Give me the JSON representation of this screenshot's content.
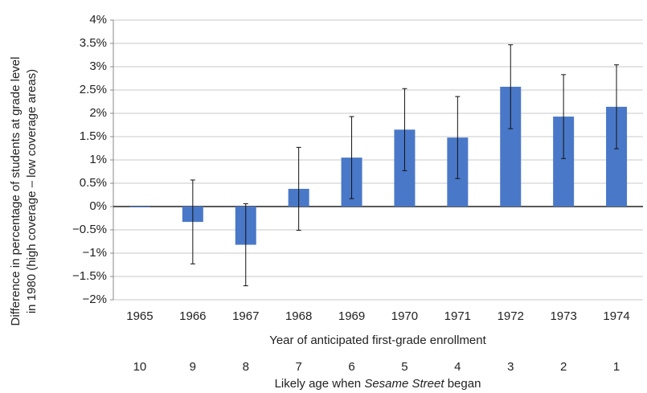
{
  "chart_data": {
    "type": "bar",
    "y_label": [
      "Difference in percentage of students at grade level",
      "in 1980 (high coverage – low coverage areas)"
    ],
    "x_label": "Year of anticipated first-grade enrollment",
    "x2_label": [
      "Likely age when ",
      "Sesame Street",
      " began"
    ],
    "categories": [
      "1965",
      "1966",
      "1967",
      "1968",
      "1969",
      "1970",
      "1971",
      "1972",
      "1973",
      "1974"
    ],
    "categories2": [
      "10",
      "9",
      "8",
      "7",
      "6",
      "5",
      "4",
      "3",
      "2",
      "1"
    ],
    "values": [
      0,
      -0.33,
      -0.82,
      0.38,
      1.05,
      1.65,
      1.48,
      2.57,
      1.93,
      2.14
    ],
    "errors": [
      0,
      0.9,
      0.88,
      0.89,
      0.88,
      0.88,
      0.88,
      0.9,
      0.9,
      0.9
    ],
    "color": "#4a78c8",
    "ylim": [
      -2,
      4
    ],
    "yticks": [
      {
        "value": -2,
        "label": "−2%"
      },
      {
        "value": -1.5,
        "label": "−1.5%"
      },
      {
        "value": -1,
        "label": "−1%"
      },
      {
        "value": -0.5,
        "label": "−0.5%"
      },
      {
        "value": 0,
        "label": "0%"
      },
      {
        "value": 0.5,
        "label": "0.5%"
      },
      {
        "value": 1,
        "label": "1%"
      },
      {
        "value": 1.5,
        "label": "1.5%"
      },
      {
        "value": 2,
        "label": "2%"
      },
      {
        "value": 2.5,
        "label": "2.5%"
      },
      {
        "value": 3,
        "label": "3%"
      },
      {
        "value": 3.5,
        "label": "3.5%"
      },
      {
        "value": 4,
        "label": "4%"
      }
    ],
    "grid": true
  }
}
